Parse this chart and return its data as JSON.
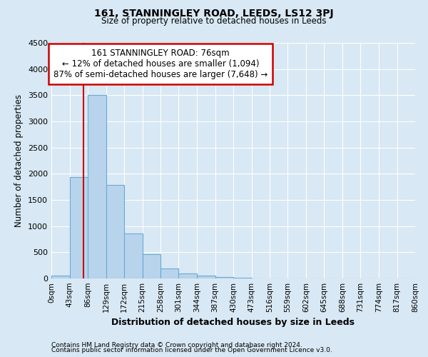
{
  "title": "161, STANNINGLEY ROAD, LEEDS, LS12 3PJ",
  "subtitle": "Size of property relative to detached houses in Leeds",
  "xlabel": "Distribution of detached houses by size in Leeds",
  "ylabel": "Number of detached properties",
  "bin_edges": [
    0,
    43,
    86,
    129,
    172,
    215,
    258,
    301,
    344,
    387,
    430,
    473,
    516,
    559,
    602,
    645,
    688,
    731,
    774,
    817,
    860
  ],
  "bin_labels": [
    "0sqm",
    "43sqm",
    "86sqm",
    "129sqm",
    "172sqm",
    "215sqm",
    "258sqm",
    "301sqm",
    "344sqm",
    "387sqm",
    "430sqm",
    "473sqm",
    "516sqm",
    "559sqm",
    "602sqm",
    "645sqm",
    "688sqm",
    "731sqm",
    "774sqm",
    "817sqm",
    "860sqm"
  ],
  "bar_heights": [
    50,
    1930,
    3500,
    1780,
    860,
    460,
    185,
    95,
    50,
    30,
    10,
    0,
    0,
    0,
    0,
    0,
    0,
    0,
    0,
    0
  ],
  "bar_color": "#b8d4ec",
  "bar_edge_color": "#6aaad4",
  "ylim": [
    0,
    4500
  ],
  "yticks": [
    0,
    500,
    1000,
    1500,
    2000,
    2500,
    3000,
    3500,
    4000,
    4500
  ],
  "property_line_x": 76,
  "property_line_color": "#cc0000",
  "annotation_text_line1": "161 STANNINGLEY ROAD: 76sqm",
  "annotation_text_line2": "← 12% of detached houses are smaller (1,094)",
  "annotation_text_line3": "87% of semi-detached houses are larger (7,648) →",
  "annotation_box_color": "#cc0000",
  "background_color": "#d8e8f4",
  "grid_color": "#ffffff",
  "footer_line1": "Contains HM Land Registry data © Crown copyright and database right 2024.",
  "footer_line2": "Contains public sector information licensed under the Open Government Licence v3.0."
}
